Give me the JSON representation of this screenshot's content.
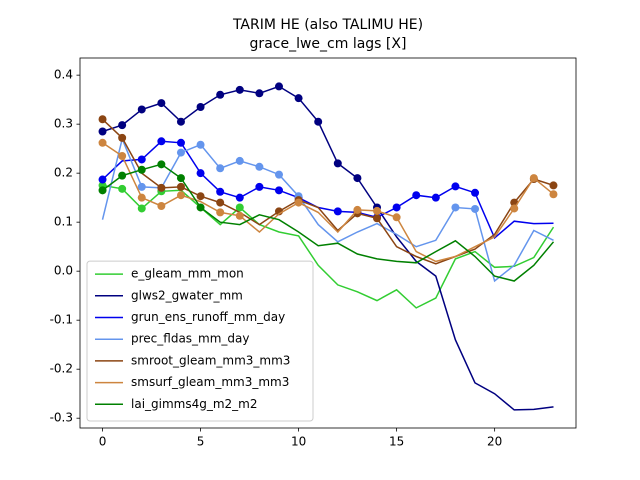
{
  "chart_data": {
    "type": "line",
    "title": "TARIM HE (also TALIMU HE)",
    "subtitle": "grace_lwe_cm lags [X]",
    "x": [
      0,
      1,
      2,
      3,
      4,
      5,
      6,
      7,
      8,
      9,
      10,
      11,
      12,
      13,
      14,
      15,
      16,
      17,
      18,
      19,
      20,
      21,
      22,
      23
    ],
    "xlim": [
      -1.15,
      24.15
    ],
    "xticks": [
      0,
      5,
      10,
      15,
      20
    ],
    "ylim": [
      -0.32,
      0.435
    ],
    "yticks": [
      -0.3,
      -0.2,
      -0.1,
      {
        "value": 0,
        "label": "0.0"
      },
      0.1,
      0.2,
      0.3,
      0.4
    ],
    "legend": "lower left",
    "series": [
      {
        "name": "e_gleam_mm_mon",
        "color": "#32cd32",
        "values": [
          0.175,
          0.168,
          0.128,
          0.163,
          0.165,
          0.13,
          0.095,
          0.13,
          0.095,
          0.08,
          0.072,
          0.012,
          -0.028,
          -0.042,
          -0.06,
          -0.038,
          -0.075,
          -0.055,
          0.025,
          0.04,
          0.008,
          0.01,
          0.028,
          0.09
        ],
        "markers": [
          true,
          true,
          true,
          true,
          false,
          false,
          false,
          true,
          false,
          false,
          false,
          false,
          false,
          false,
          false,
          false,
          false,
          false,
          false,
          false,
          false,
          false,
          false,
          false
        ]
      },
      {
        "name": "glws2_gwater_mm",
        "color": "#000080",
        "values": [
          0.285,
          0.298,
          0.33,
          0.343,
          0.305,
          0.335,
          0.36,
          0.37,
          0.363,
          0.377,
          0.353,
          0.305,
          0.22,
          0.19,
          0.13,
          0.07,
          0.02,
          -0.01,
          -0.14,
          -0.228,
          -0.25,
          -0.283,
          -0.282,
          -0.277
        ],
        "markers": [
          true,
          true,
          true,
          true,
          true,
          true,
          true,
          true,
          true,
          true,
          true,
          true,
          true,
          true,
          true,
          false,
          false,
          false,
          false,
          false,
          false,
          false,
          false,
          false
        ]
      },
      {
        "name": "grun_ens_runoff_mm_day",
        "color": "#0000ee",
        "values": [
          0.187,
          0.225,
          0.228,
          0.265,
          0.262,
          0.2,
          0.162,
          0.15,
          0.172,
          0.165,
          0.15,
          0.13,
          0.122,
          0.12,
          0.11,
          0.13,
          0.155,
          0.15,
          0.173,
          0.16,
          0.068,
          0.102,
          0.097,
          0.098
        ],
        "markers": [
          true,
          false,
          true,
          true,
          true,
          true,
          true,
          true,
          true,
          true,
          true,
          false,
          true,
          true,
          true,
          true,
          true,
          true,
          true,
          true,
          false,
          false,
          false,
          false
        ]
      },
      {
        "name": "prec_fldas_mm_day",
        "color": "#6495ed",
        "values": [
          0.105,
          0.27,
          0.172,
          0.17,
          0.242,
          0.258,
          0.21,
          0.225,
          0.213,
          0.197,
          0.153,
          0.095,
          0.06,
          0.08,
          0.097,
          0.075,
          0.05,
          0.063,
          0.13,
          0.127,
          -0.02,
          0.012,
          0.083,
          0.063
        ],
        "markers": [
          false,
          false,
          true,
          true,
          true,
          true,
          true,
          true,
          true,
          true,
          true,
          false,
          false,
          false,
          false,
          false,
          false,
          false,
          true,
          true,
          false,
          false,
          false,
          false
        ]
      },
      {
        "name": "smroot_gleam_mm3_mm3",
        "color": "#8b4513",
        "values": [
          0.31,
          0.272,
          0.2,
          0.17,
          0.172,
          0.153,
          0.14,
          0.12,
          0.095,
          0.122,
          0.145,
          0.13,
          0.083,
          0.118,
          0.108,
          0.05,
          0.03,
          0.015,
          0.03,
          0.045,
          0.075,
          0.14,
          0.188,
          0.175
        ],
        "markers": [
          true,
          true,
          false,
          true,
          true,
          true,
          true,
          false,
          false,
          true,
          true,
          false,
          false,
          true,
          true,
          false,
          false,
          false,
          false,
          false,
          false,
          true,
          true,
          true
        ]
      },
      {
        "name": "smsurf_gleam_mm3_mm3",
        "color": "#cd853f",
        "values": [
          0.262,
          0.235,
          0.15,
          0.133,
          0.155,
          0.142,
          0.12,
          0.113,
          0.08,
          0.117,
          0.14,
          0.12,
          0.08,
          0.125,
          0.123,
          0.11,
          0.04,
          0.02,
          0.03,
          0.05,
          0.07,
          0.128,
          0.19,
          0.157
        ],
        "markers": [
          true,
          true,
          true,
          true,
          true,
          false,
          true,
          true,
          false,
          false,
          true,
          false,
          false,
          true,
          true,
          true,
          false,
          false,
          false,
          false,
          false,
          true,
          true,
          true
        ]
      },
      {
        "name": "lai_gimms4g_m2_m2",
        "color": "#008000",
        "values": [
          0.165,
          0.195,
          0.207,
          0.218,
          0.19,
          0.13,
          0.1,
          0.095,
          0.115,
          0.105,
          0.08,
          0.052,
          0.057,
          0.035,
          0.025,
          0.02,
          0.017,
          0.04,
          0.062,
          0.03,
          -0.01,
          -0.02,
          0.012,
          0.06
        ],
        "markers": [
          true,
          true,
          true,
          true,
          true,
          true,
          false,
          false,
          false,
          false,
          false,
          false,
          false,
          false,
          false,
          false,
          false,
          false,
          false,
          false,
          false,
          false,
          false,
          false
        ]
      }
    ]
  }
}
